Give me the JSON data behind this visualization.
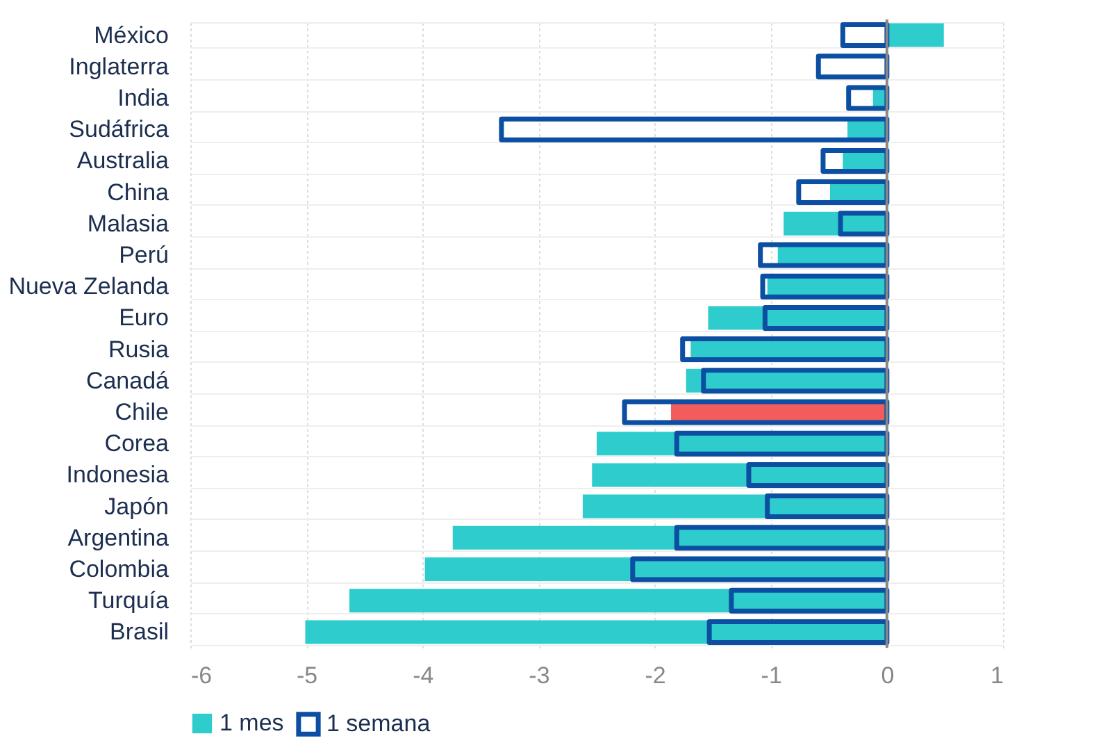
{
  "chart_data": {
    "type": "bar",
    "orientation": "horizontal",
    "categories": [
      "México",
      "Inglaterra",
      "India",
      "Sudáfrica",
      "Australia",
      "China",
      "Malasia",
      "Perú",
      "Nueva Zelanda",
      "Euro",
      "Rusia",
      "Canadá",
      "Chile",
      "Corea",
      "Indonesia",
      "Japón",
      "Argentina",
      "Colombia",
      "Turquía",
      "Brasil"
    ],
    "series": [
      {
        "name": "1 mes",
        "color": "#2ecccc",
        "colors": [
          "#2ecccc",
          "#2ecccc",
          "#2ecccc",
          "#2ecccc",
          "#2ecccc",
          "#2ecccc",
          "#2ecccc",
          "#2ecccc",
          "#2ecccc",
          "#2ecccc",
          "#2ecccc",
          "#2ecccc",
          "#f25c5c",
          "#2ecccc",
          "#2ecccc",
          "#2ecccc",
          "#2ecccc",
          "#2ecccc",
          "#2ecccc",
          "#2ecccc"
        ],
        "values": [
          0.49,
          0,
          -0.12,
          -0.34,
          -0.38,
          -0.49,
          -0.89,
          -0.94,
          -1.03,
          -1.54,
          -1.69,
          -1.73,
          -1.86,
          -2.5,
          -2.54,
          -2.62,
          -3.74,
          -3.98,
          -4.63,
          -5.01
        ]
      },
      {
        "name": "1 semana",
        "type": "bar",
        "color": "#0b4ea2",
        "values": [
          -0.38,
          -0.59,
          -0.33,
          -3.32,
          -0.55,
          -0.76,
          -0.4,
          -1.09,
          -1.07,
          -1.05,
          -1.76,
          -1.58,
          -2.26,
          -1.81,
          -1.19,
          -1.03,
          -1.81,
          -2.19,
          -1.34,
          -1.53
        ]
      }
    ],
    "xlim": [
      -6,
      1
    ],
    "xticks": [
      -6,
      -5,
      -4,
      -3,
      -2,
      -1,
      0,
      1
    ],
    "grid": true,
    "legend": "bottom"
  }
}
